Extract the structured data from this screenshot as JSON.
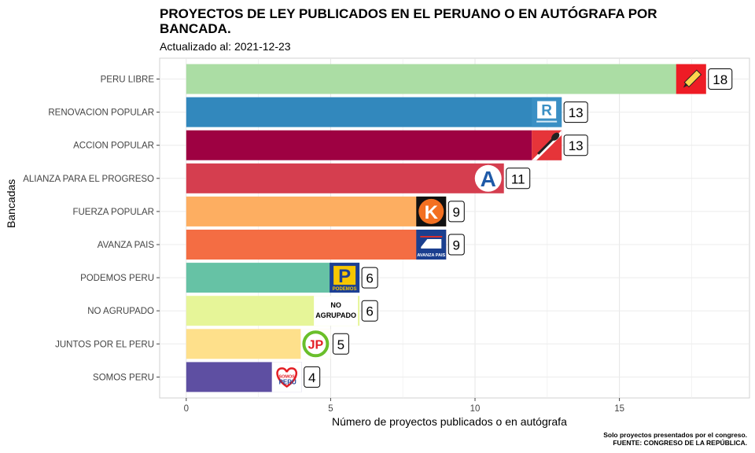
{
  "title": "PROYECTOS DE LEY PUBLICADOS EN EL PERUANO O EN AUTÓGRAFA POR BANCADA.",
  "subtitle": "Actualizado al: 2021-12-23",
  "caption_line1": "Solo proyectos presentados por el congreso.",
  "caption_line2": "FUENTE: CONGRESO DE LA REPÚBLICA.",
  "chart_data": {
    "type": "bar",
    "orientation": "horizontal",
    "xlabel": "Número de proyectos publicados o en autógrafa",
    "ylabel": "Bancadas",
    "xlim": [
      0,
      19
    ],
    "xticks": [
      0,
      5,
      10,
      15
    ],
    "grid": true,
    "categories": [
      "PERU LIBRE",
      "RENOVACION POPULAR",
      "ACCION POPULAR",
      "ALIANZA PARA EL PROGRESO",
      "FUERZA POPULAR",
      "AVANZA PAIS",
      "PODEMOS PERU",
      "NO AGRUPADO",
      "JUNTOS POR EL PERU",
      "SOMOS PERU"
    ],
    "values": [
      18,
      13,
      13,
      11,
      9,
      9,
      6,
      6,
      5,
      4
    ],
    "colors": [
      "#ABDDA4",
      "#3288BD",
      "#9E0142",
      "#D53E4F",
      "#FDAE61",
      "#F46D43",
      "#66C2A5",
      "#E6F598",
      "#FEE08B",
      "#5E4FA2"
    ],
    "logos": [
      "pencil-logo",
      "renovacion-logo",
      "shovel-logo",
      "app-logo",
      "fuerza-k-logo",
      "avanza-train-logo",
      "podemos-p-logo",
      "no-agrupado-text-logo",
      "jp-logo",
      "somos-peru-heart-logo"
    ],
    "logo_texts": {
      "renovacion": "R",
      "app": "A",
      "fuerza": "K",
      "avanza_caption": "AVANZA PAIS",
      "podemos": "P",
      "podemos_caption": "PODEMOS",
      "no_agrupado_1": "NO",
      "no_agrupado_2": "AGRUPADO",
      "jp": "JP",
      "somos": "SOMOS",
      "somos_peru": "PERU"
    }
  }
}
